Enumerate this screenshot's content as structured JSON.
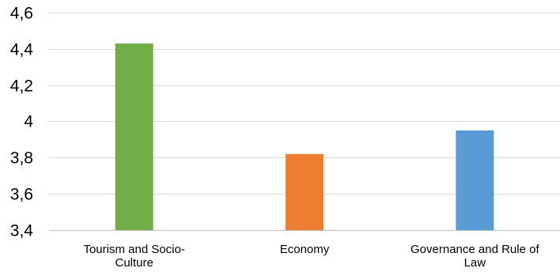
{
  "chart_data": {
    "type": "bar",
    "categories": [
      [
        "Tourism and Socio-",
        "Culture"
      ],
      [
        "Economy"
      ],
      [
        "Governance and Rule of",
        "Law"
      ]
    ],
    "values": [
      4.43,
      3.82,
      3.95
    ],
    "colors": [
      "#70ad47",
      "#ed7d31",
      "#5b9bd5"
    ],
    "ylim": [
      3.4,
      4.6
    ],
    "yticks": [
      3.4,
      3.6,
      3.8,
      4.0,
      4.2,
      4.4,
      4.6
    ],
    "ytick_labels": [
      "3,4",
      "3,6",
      "3,8",
      "4",
      "4,2",
      "4,4",
      "4,6"
    ],
    "grid": true,
    "legend": false,
    "title": "",
    "xlabel": "",
    "ylabel": ""
  }
}
